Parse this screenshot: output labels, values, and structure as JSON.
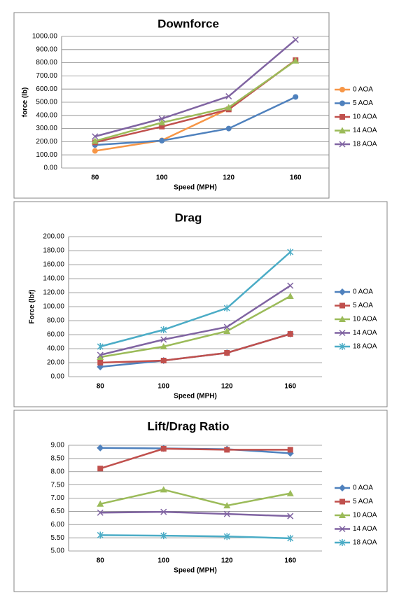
{
  "chart_data": [
    {
      "type": "line",
      "title": "Downforce",
      "x_label": "Speed (MPH)",
      "y_label": "force (lb)",
      "categories": [
        "80",
        "100",
        "120",
        "160"
      ],
      "ylim": [
        0,
        1000
      ],
      "yticks": [
        {
          "value": 0,
          "label": "0.00"
        },
        {
          "value": 100,
          "label": "100.00"
        },
        {
          "value": 200,
          "label": "200.00"
        },
        {
          "value": 300,
          "label": "300.00"
        },
        {
          "value": 400,
          "label": "400.00"
        },
        {
          "value": 500,
          "label": "500.00"
        },
        {
          "value": 600,
          "label": "600.00"
        },
        {
          "value": 700,
          "label": "700.00"
        },
        {
          "value": 800,
          "label": "800.00"
        },
        {
          "value": 900,
          "label": "900.00"
        },
        {
          "value": 1000,
          "label": "1000.00"
        }
      ],
      "grid": true,
      "legend": "right",
      "series": [
        {
          "name": "0 AOA",
          "color": "#f79646",
          "marker": "circle",
          "values": [
            130,
            210,
            450,
            820
          ]
        },
        {
          "name": "5 AOA",
          "color": "#4f81bd",
          "marker": "circle",
          "values": [
            175,
            208,
            300,
            540
          ]
        },
        {
          "name": "10 AOA",
          "color": "#c0504d",
          "marker": "square",
          "values": [
            195,
            315,
            445,
            820
          ]
        },
        {
          "name": "14 AOA",
          "color": "#9bbb59",
          "marker": "triangle",
          "values": [
            205,
            345,
            460,
            815
          ]
        },
        {
          "name": "18 AOA",
          "color": "#8064a2",
          "marker": "x",
          "values": [
            240,
            375,
            545,
            975
          ]
        }
      ]
    },
    {
      "type": "line",
      "title": "Drag",
      "x_label": "Speed (MPH)",
      "y_label": "Force (lbf)",
      "categories": [
        "80",
        "100",
        "120",
        "160"
      ],
      "ylim": [
        0,
        200
      ],
      "yticks": [
        {
          "value": 0,
          "label": "0.00"
        },
        {
          "value": 20,
          "label": "20.00"
        },
        {
          "value": 40,
          "label": "40.00"
        },
        {
          "value": 60,
          "label": "60.00"
        },
        {
          "value": 80,
          "label": "80.00"
        },
        {
          "value": 100,
          "label": "100.00"
        },
        {
          "value": 120,
          "label": "120.00"
        },
        {
          "value": 140,
          "label": "140.00"
        },
        {
          "value": 160,
          "label": "160.00"
        },
        {
          "value": 180,
          "label": "180.00"
        },
        {
          "value": 200,
          "label": "200.00"
        }
      ],
      "grid": true,
      "legend": "right",
      "series": [
        {
          "name": "0 AOA",
          "color": "#4f81bd",
          "marker": "diamond",
          "values": [
            14,
            23,
            34,
            61
          ]
        },
        {
          "name": "5 AOA",
          "color": "#c0504d",
          "marker": "square",
          "values": [
            20,
            23,
            34,
            61
          ]
        },
        {
          "name": "10 AOA",
          "color": "#9bbb59",
          "marker": "triangle",
          "values": [
            28,
            43,
            65,
            115
          ]
        },
        {
          "name": "14 AOA",
          "color": "#8064a2",
          "marker": "x",
          "values": [
            31,
            53,
            71,
            130
          ]
        },
        {
          "name": "18 AOA",
          "color": "#4bacc6",
          "marker": "star",
          "values": [
            43,
            67,
            98,
            178
          ]
        }
      ]
    },
    {
      "type": "line",
      "title": "Lift/Drag Ratio",
      "x_label": "Speed (MPH)",
      "categories": [
        "80",
        "100",
        "120",
        "160"
      ],
      "ylim": [
        5,
        9
      ],
      "yticks": [
        {
          "value": 5,
          "label": "5.00"
        },
        {
          "value": 5.5,
          "label": "5.50"
        },
        {
          "value": 6,
          "label": "6.00"
        },
        {
          "value": 6.5,
          "label": "6.50"
        },
        {
          "value": 7,
          "label": "7.00"
        },
        {
          "value": 7.5,
          "label": "7.50"
        },
        {
          "value": 8,
          "label": "8.00"
        },
        {
          "value": 8.5,
          "label": "8.50"
        },
        {
          "value": 9,
          "label": "9.00"
        }
      ],
      "grid": true,
      "legend": "right",
      "series": [
        {
          "name": "0 AOA",
          "color": "#4f81bd",
          "marker": "diamond",
          "values": [
            8.9,
            8.88,
            8.85,
            8.7
          ]
        },
        {
          "name": "5 AOA",
          "color": "#c0504d",
          "marker": "square",
          "values": [
            8.12,
            8.87,
            8.83,
            8.83
          ]
        },
        {
          "name": "10 AOA",
          "color": "#9bbb59",
          "marker": "triangle",
          "values": [
            6.78,
            7.32,
            6.72,
            7.18
          ]
        },
        {
          "name": "14 AOA",
          "color": "#8064a2",
          "marker": "x",
          "values": [
            6.45,
            6.48,
            6.4,
            6.32
          ]
        },
        {
          "name": "18 AOA",
          "color": "#4bacc6",
          "marker": "star",
          "values": [
            5.6,
            5.58,
            5.55,
            5.48
          ]
        }
      ]
    }
  ]
}
